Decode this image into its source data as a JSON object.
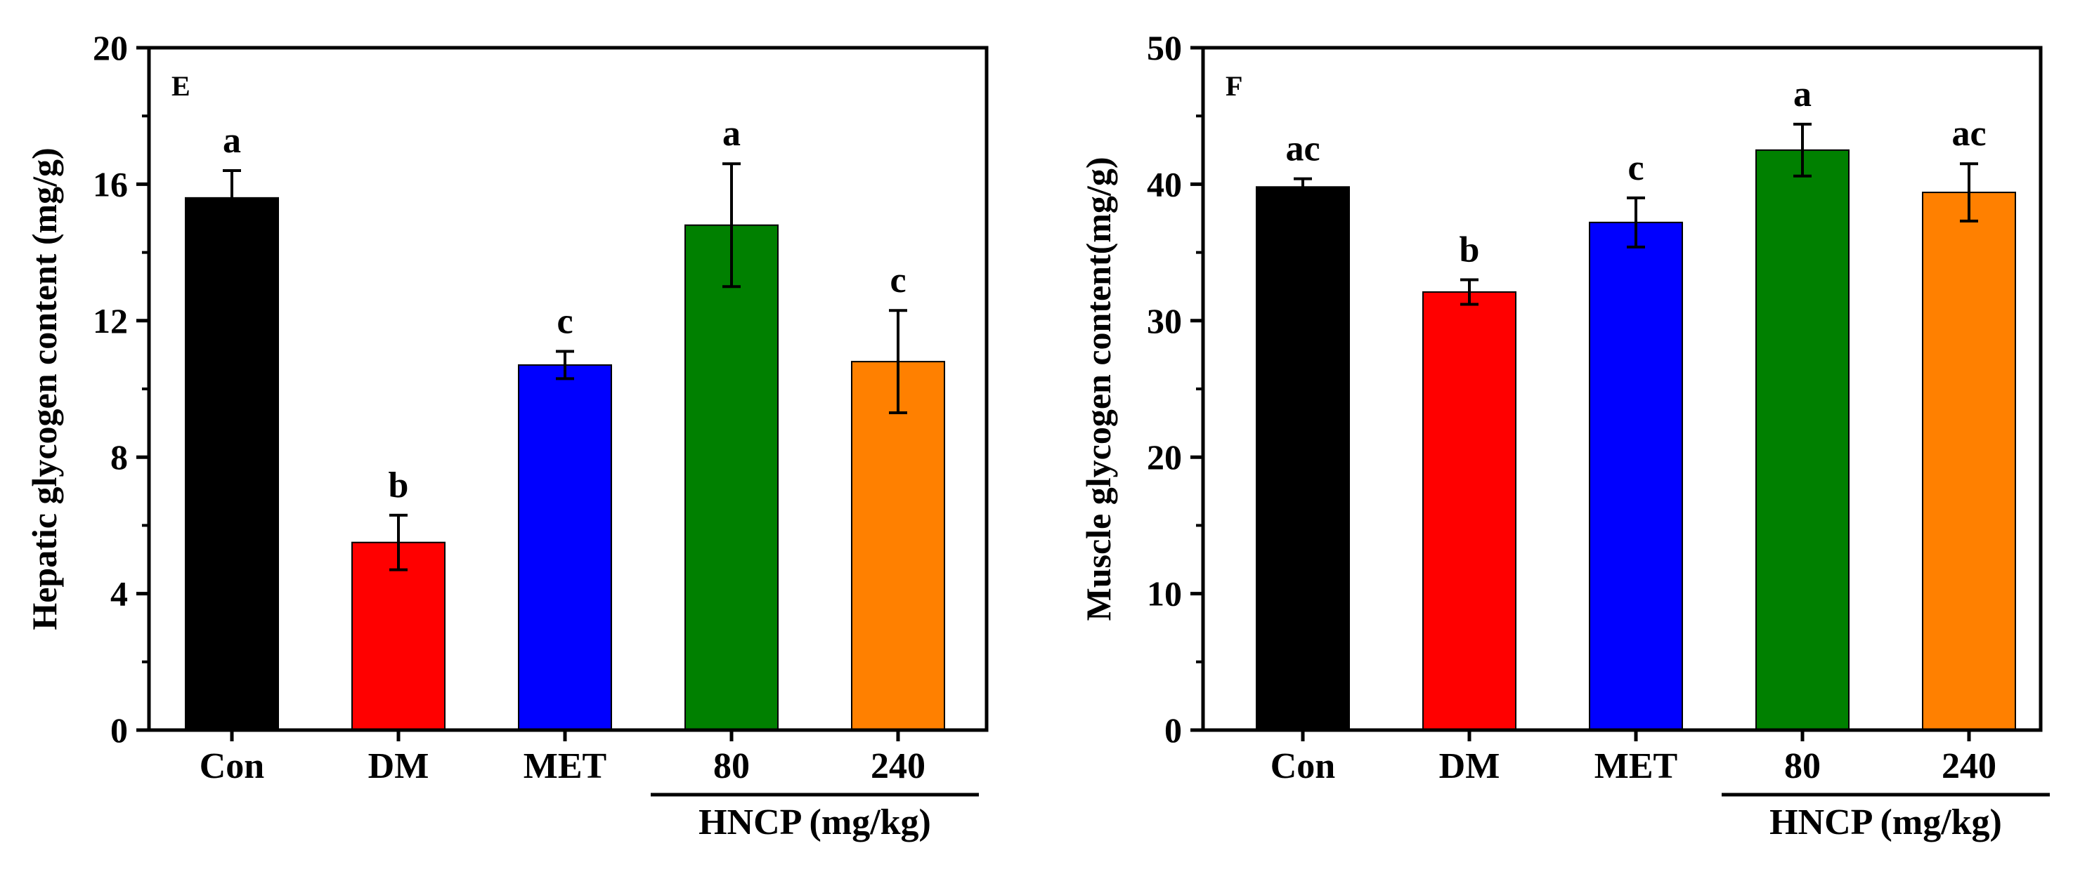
{
  "chart_data": [
    {
      "type": "bar",
      "panel_label": "E",
      "ylabel": "Hepatic glycogen content (mg/g)",
      "xlabel": "",
      "ylim": [
        0,
        20
      ],
      "yticks": [
        0,
        4,
        8,
        12,
        16,
        20
      ],
      "grid": false,
      "categories": [
        "Con",
        "DM",
        "MET",
        "80",
        "240"
      ],
      "values": [
        15.6,
        5.5,
        10.7,
        14.8,
        10.8
      ],
      "errors": [
        0.8,
        0.8,
        0.4,
        1.8,
        1.5
      ],
      "significance": [
        "a",
        "b",
        "c",
        "a",
        "c"
      ],
      "colors": [
        "#000000",
        "#ff0000",
        "#0000ff",
        "#008000",
        "#ff8000"
      ],
      "group_label": "HNCP (mg/kg)"
    },
    {
      "type": "bar",
      "panel_label": "F",
      "ylabel": "Muscle glycogen content(mg/g)",
      "xlabel": "",
      "ylim": [
        0,
        50
      ],
      "yticks": [
        0,
        10,
        20,
        30,
        40,
        50
      ],
      "grid": false,
      "categories": [
        "Con",
        "DM",
        "MET",
        "80",
        "240"
      ],
      "values": [
        39.8,
        32.1,
        37.2,
        42.5,
        39.4
      ],
      "errors": [
        0.6,
        0.9,
        1.8,
        1.9,
        2.1
      ],
      "significance": [
        "ac",
        "b",
        "c",
        "a",
        "ac"
      ],
      "colors": [
        "#000000",
        "#ff0000",
        "#0000ff",
        "#008000",
        "#ff8000"
      ],
      "group_label": "HNCP (mg/kg)"
    }
  ]
}
